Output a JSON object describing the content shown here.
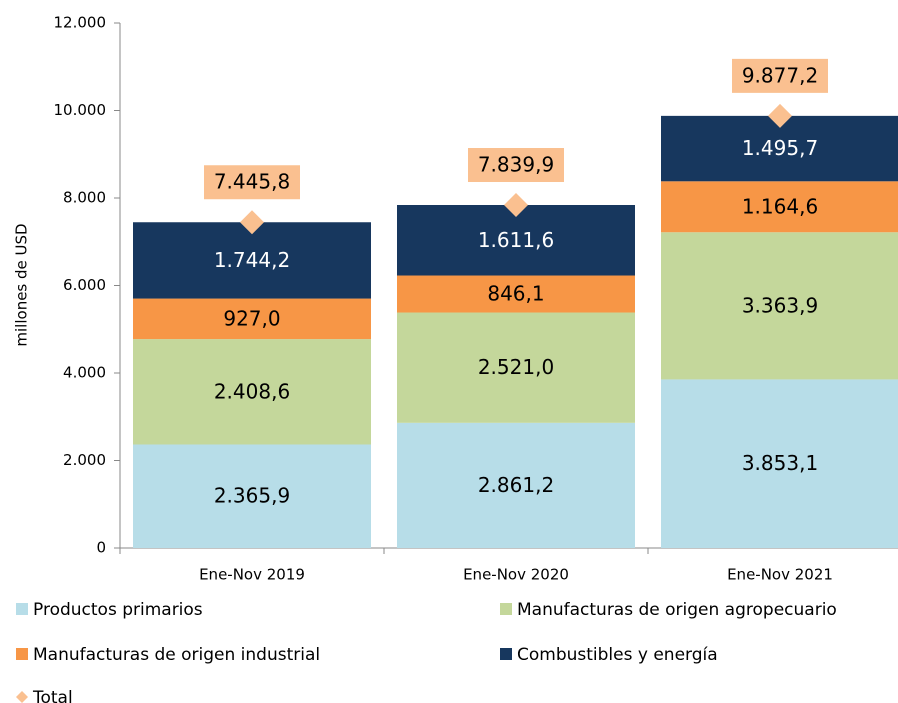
{
  "chart_data": {
    "type": "bar",
    "stacked": true,
    "y_label": "millones de  USD",
    "categories": [
      "Ene-Nov 2019",
      "Ene-Nov 2020",
      "Ene-Nov 2021"
    ],
    "ylim": [
      0,
      12000
    ],
    "yticks": [
      0,
      {
        "value": 2000,
        "label": "2.000"
      },
      {
        "value": 4000,
        "label": "4.000"
      },
      {
        "value": 6000,
        "label": "6.000"
      },
      {
        "value": 8000,
        "label": "8.000"
      },
      {
        "value": 10000,
        "label": "10.000"
      },
      {
        "value": 12000,
        "label": "12.000"
      }
    ],
    "series": [
      {
        "name": "Productos primarios",
        "color": "#b7dde8",
        "values": [
          2365.9,
          2861.2,
          3853.1
        ],
        "value_labels": [
          "2.365,9",
          "2.861,2",
          "3.853,1"
        ]
      },
      {
        "name": "Manufacturas de origen agropecuario",
        "color": "#c4d79b",
        "values": [
          2408.6,
          2521.0,
          3363.9
        ],
        "value_labels": [
          "2.408,6",
          "2.521,0",
          "3.363,9"
        ]
      },
      {
        "name": "Manufacturas de origen industrial",
        "color": "#f79646",
        "values": [
          927.0,
          846.1,
          1164.6
        ],
        "value_labels": [
          "927,0",
          "846,1",
          "1.164,6"
        ]
      },
      {
        "name": "Combustibles y energía",
        "color": "#17375e",
        "values": [
          1744.2,
          1611.6,
          1495.7
        ],
        "value_labels": [
          "1.744,2",
          "1.611,6",
          "1.495,7"
        ]
      },
      {
        "name": "Total",
        "color": "#fac090",
        "marker": "diamond",
        "values": [
          7445.8,
          7839.9,
          9877.2
        ],
        "value_labels": [
          "7.445,8",
          "7.839,9",
          "9.877,2"
        ]
      }
    ]
  }
}
